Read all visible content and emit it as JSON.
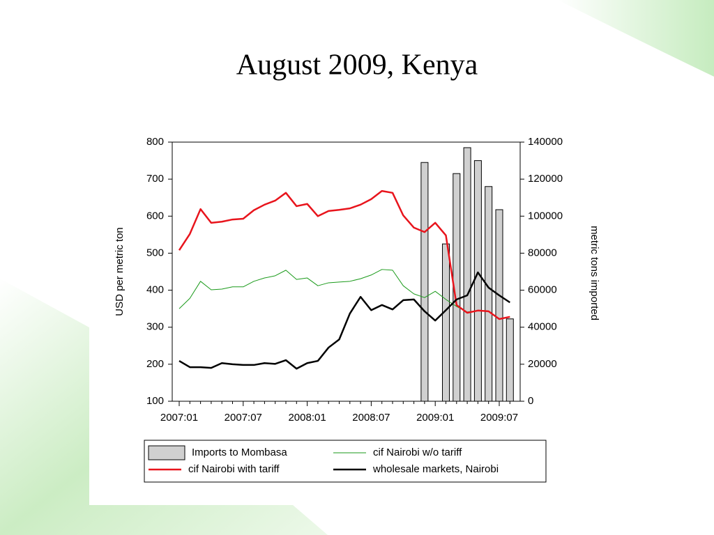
{
  "chart_data": {
    "type": "line",
    "title": "August 2009, Kenya",
    "y_label": "USD per metric ton",
    "y2_label": "metric tons imported",
    "categories": [
      "2007:01",
      null,
      null,
      null,
      null,
      null,
      "2007:07",
      null,
      null,
      null,
      null,
      null,
      "2008:01",
      null,
      null,
      null,
      null,
      null,
      "2008:07",
      null,
      null,
      null,
      null,
      null,
      "2009:01",
      null,
      null,
      null,
      null,
      null,
      "2009:07",
      null
    ],
    "ylim": [
      100,
      800
    ],
    "yticks": [
      100,
      200,
      300,
      400,
      500,
      600,
      700,
      800
    ],
    "y2lim": [
      0,
      140000
    ],
    "y2ticks": [
      0,
      20000,
      40000,
      60000,
      80000,
      100000,
      120000,
      140000
    ],
    "series": [
      {
        "name": "Imports to Mombasa",
        "type": "bar",
        "axis": "y2",
        "color": "#d0d0d0",
        "values": [
          null,
          null,
          null,
          null,
          null,
          null,
          null,
          null,
          null,
          null,
          null,
          null,
          null,
          null,
          null,
          null,
          null,
          null,
          null,
          null,
          null,
          null,
          null,
          129000,
          null,
          85000,
          123000,
          137000,
          130000,
          116000,
          103500,
          44500
        ]
      },
      {
        "name": "cif Nairobi w/o tariff",
        "type": "line",
        "color": "#1a9a1a",
        "width": 1,
        "values": [
          350,
          378,
          424,
          401,
          403,
          409,
          409,
          424,
          433,
          439,
          454,
          429,
          433,
          412,
          420,
          422,
          424,
          431,
          441,
          456,
          454,
          412,
          390,
          380,
          397,
          375,
          356,
          341,
          345,
          343,
          322,
          328
        ]
      },
      {
        "name": "cif Nairobi with tariff",
        "type": "line",
        "color": "#e8141c",
        "width": 2.5,
        "values": [
          508,
          552,
          619,
          582,
          585,
          591,
          593,
          616,
          631,
          642,
          663,
          627,
          633,
          600,
          614,
          617,
          621,
          631,
          646,
          668,
          663,
          602,
          569,
          557,
          582,
          548,
          360,
          339,
          345,
          343,
          322,
          328
        ]
      },
      {
        "name": "wholesale markets, Nairobi",
        "type": "line",
        "color": "#000000",
        "width": 2.5,
        "values": [
          209,
          192,
          192,
          190,
          203,
          200,
          198,
          198,
          203,
          201,
          211,
          188,
          203,
          209,
          245,
          267,
          337,
          382,
          346,
          360,
          348,
          373,
          375,
          343,
          318,
          346,
          375,
          386,
          448,
          407,
          386,
          367
        ]
      }
    ]
  }
}
